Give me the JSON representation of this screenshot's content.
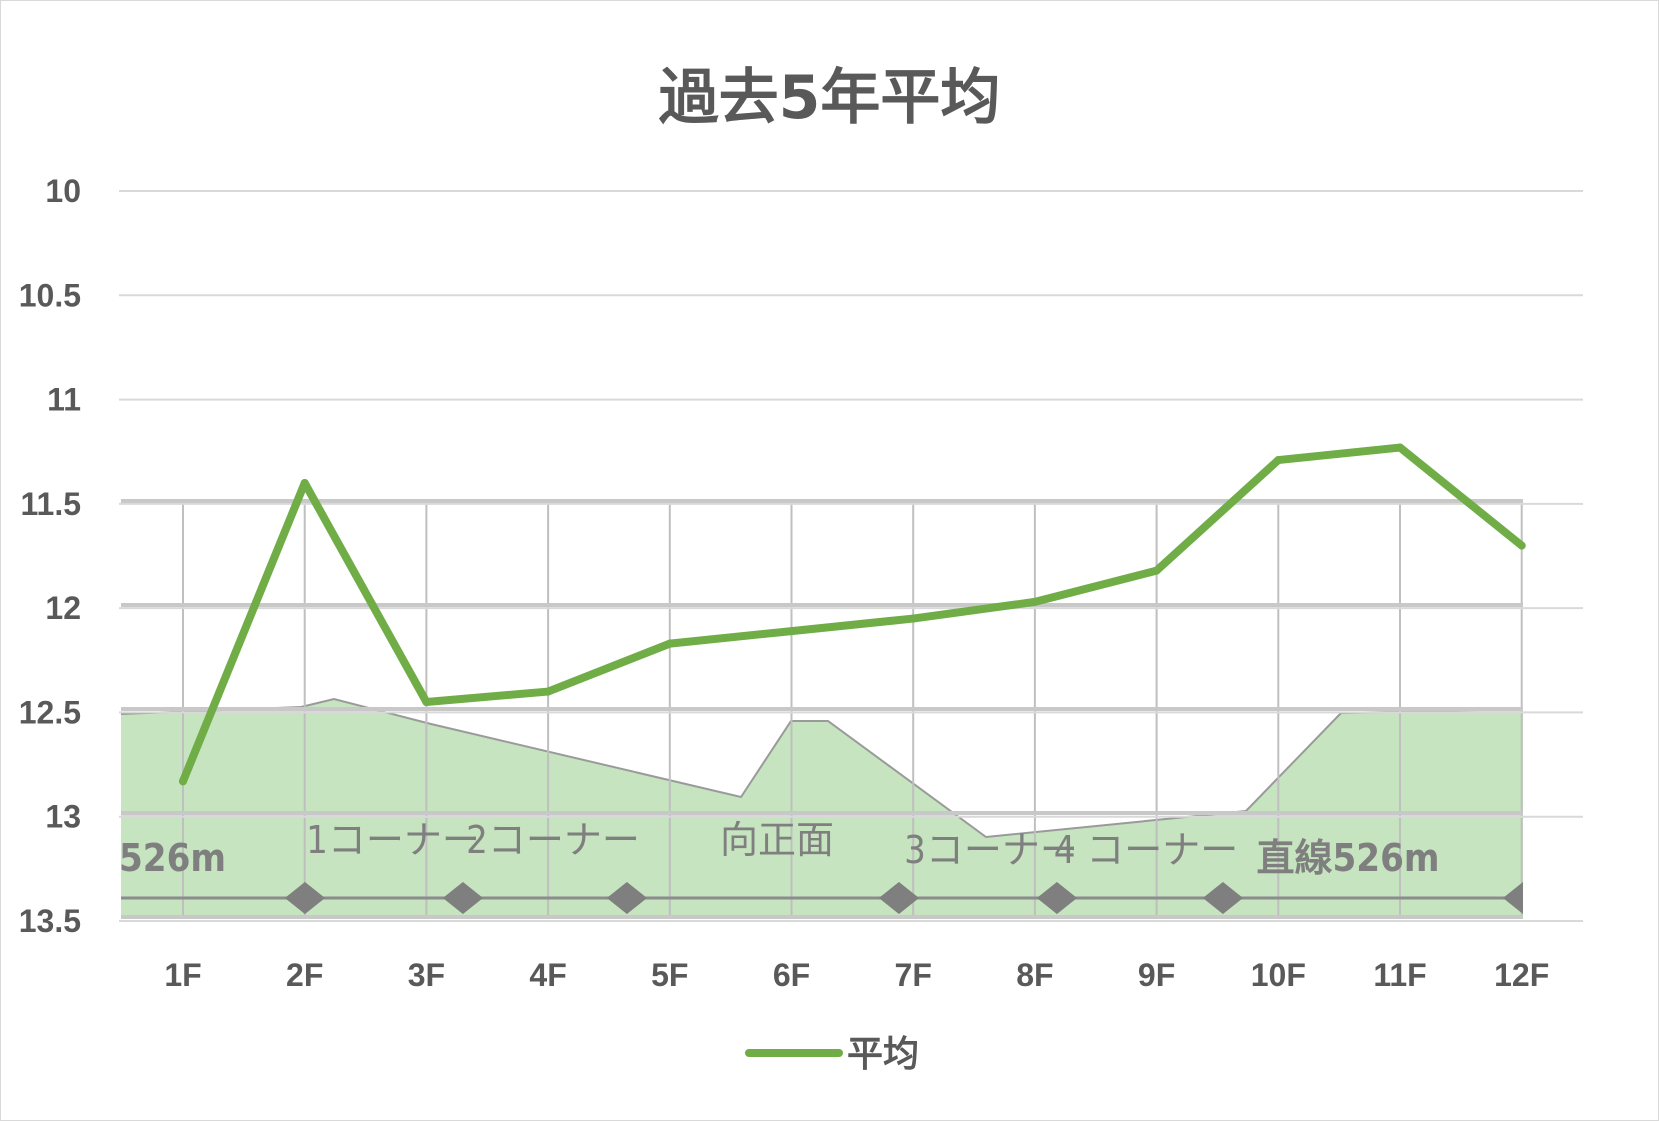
{
  "chart_data": {
    "type": "line",
    "title": "過去5年平均",
    "categories": [
      "1F",
      "2F",
      "3F",
      "4F",
      "5F",
      "6F",
      "7F",
      "8F",
      "9F",
      "10F",
      "11F",
      "12F"
    ],
    "series": [
      {
        "name": "平均",
        "values": [
          12.83,
          11.4,
          12.45,
          12.4,
          12.17,
          12.11,
          12.05,
          11.97,
          11.82,
          11.29,
          11.23,
          11.7
        ],
        "color": "#70ad47"
      }
    ],
    "ylim": [
      10,
      13.5
    ],
    "y_reversed": true,
    "y_ticks": [
      "10",
      "10.5",
      "11",
      "11.5",
      "12",
      "12.5",
      "13",
      "13.5"
    ],
    "grid": true,
    "legend": "bottom",
    "track_profile": {
      "fill_color": "#c5e4bf",
      "edge_color": "#9a9a9a",
      "section_labels": [
        "526m",
        "1コーナー",
        "2コーナー",
        "向正面",
        "3コーナー",
        "4 コーナー",
        "直線526m"
      ]
    }
  }
}
